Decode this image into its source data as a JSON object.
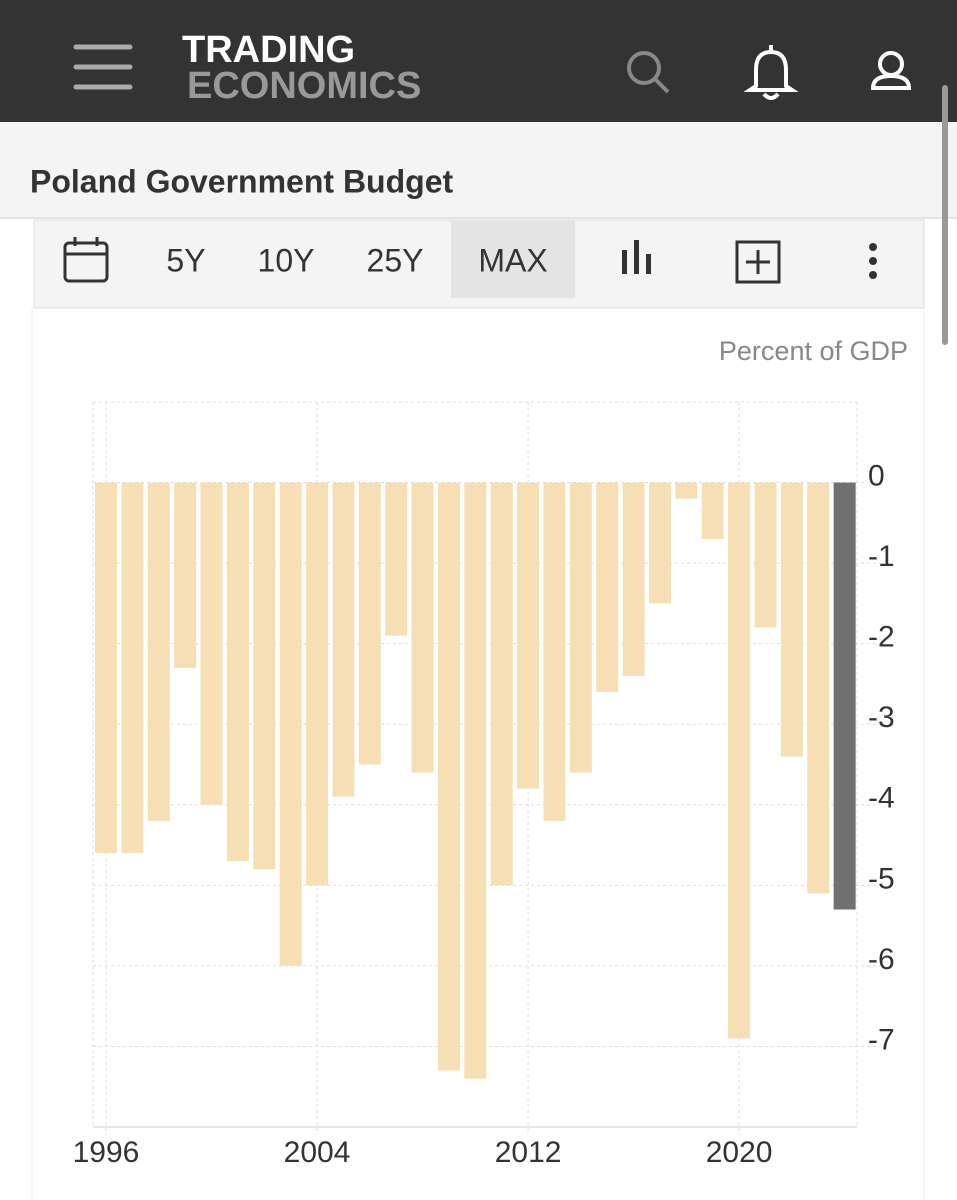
{
  "header": {
    "logo_top": "TRADING",
    "logo_bottom": "ECONOMICS"
  },
  "toolbar": {
    "ranges": [
      "5Y",
      "10Y",
      "25Y",
      "MAX"
    ]
  },
  "chart_data": {
    "type": "bar",
    "title": "Poland Government Budget",
    "ylabel": "Percent of GDP",
    "categories": [
      "1996",
      null,
      null,
      null,
      null,
      null,
      null,
      null,
      "2004",
      null,
      null,
      null,
      null,
      null,
      null,
      null,
      "2012",
      null,
      null,
      null,
      null,
      null,
      null,
      null,
      "2020",
      null,
      null,
      null,
      null
    ],
    "values": [
      -4.6,
      -4.6,
      -4.2,
      -2.3,
      -4.0,
      -4.7,
      -4.8,
      -6.0,
      -5.0,
      -3.9,
      -3.5,
      -1.9,
      -3.6,
      -7.3,
      -7.4,
      -5.0,
      -3.8,
      -4.2,
      -3.6,
      -2.6,
      -2.4,
      -1.5,
      -0.2,
      -0.7,
      -6.9,
      -1.8,
      -3.4,
      -5.1,
      -5.3
    ],
    "colors": [
      "#f6dfb4",
      "#f6dfb4",
      "#f6dfb4",
      "#f6dfb4",
      "#f6dfb4",
      "#f6dfb4",
      "#f6dfb4",
      "#f6dfb4",
      "#f6dfb4",
      "#f6dfb4",
      "#f6dfb4",
      "#f6dfb4",
      "#f6dfb4",
      "#f6dfb4",
      "#f6dfb4",
      "#f6dfb4",
      "#f6dfb4",
      "#f6dfb4",
      "#f6dfb4",
      "#f6dfb4",
      "#f6dfb4",
      "#f6dfb4",
      "#f6dfb4",
      "#f6dfb4",
      "#f6dfb4",
      "#f6dfb4",
      "#f6dfb4",
      "#f6dfb4",
      "#707070"
    ],
    "ylim": [
      -8,
      1
    ],
    "yticks": [
      0,
      -1,
      -2,
      -3,
      -4,
      -5,
      -6,
      -7
    ],
    "grid": true
  }
}
